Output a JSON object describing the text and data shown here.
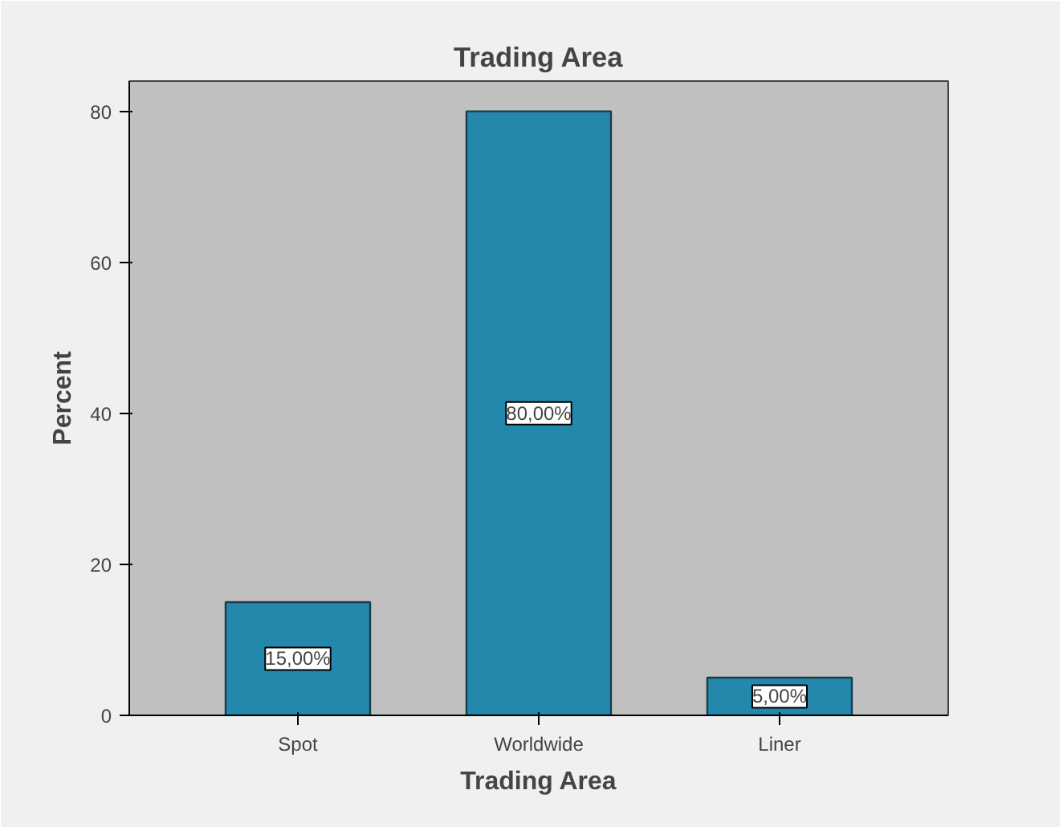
{
  "chart_data": {
    "type": "bar",
    "title": "Trading Area",
    "xlabel": "Trading Area",
    "ylabel": "Percent",
    "categories": [
      "Spot",
      "Worldwide",
      "Liner"
    ],
    "values": [
      15,
      80,
      5
    ],
    "value_labels": [
      "15,00%",
      "80,00%",
      "5,00%"
    ],
    "color": "#2388ac",
    "ylim": [
      0,
      84
    ],
    "yticks": [
      0,
      20,
      40,
      60,
      80
    ],
    "grid": false
  }
}
